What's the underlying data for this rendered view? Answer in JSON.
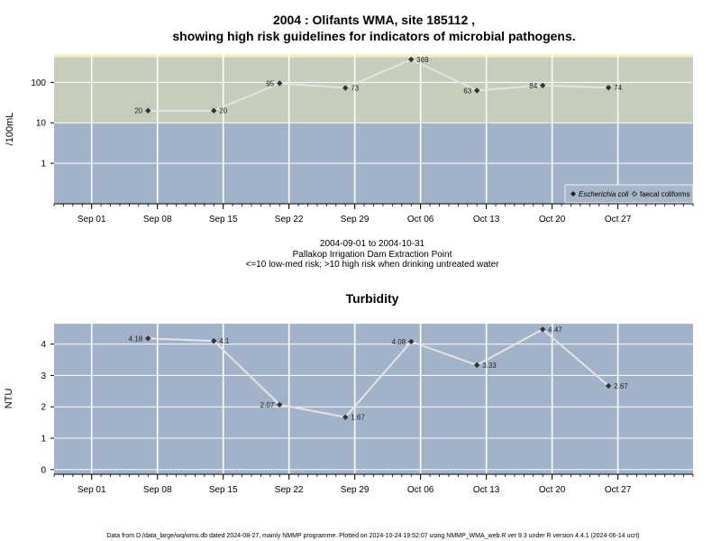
{
  "footer": "Data from D:/data_large/wq/wms.db dated 2024-08-27, mainly NMMP programme. Plotted on 2024-10-24 19:52:07 using NMMP_WMA_web.R ver 9.3 under R version 4.4.1 (2024-06-14 ucrt)",
  "info": {
    "range": "2004-09-01 to 2004-10-31",
    "site_name": "Pallakop Irrigation Dam Extraction Point",
    "guideline": "<=10 low-med risk; >10 high risk when drinking untreated water"
  },
  "colors": {
    "low_band": "#a2b2c9",
    "high_band": "#c5ceba",
    "top_strip": "#f4f0c4",
    "line": "#e4e4e4",
    "marker": "#333333",
    "grid": "#ffffff"
  },
  "chart_data": [
    {
      "type": "line",
      "title": "2004 : Olifants WMA, site 185112 ,",
      "subtitle": "showing high risk guidelines for indicators of microbial pathogens.",
      "xlabel": "",
      "ylabel": "/100mL",
      "y_scale": "log",
      "xlim": [
        "2004-08-28",
        "2004-11-04"
      ],
      "ylim": [
        0.1,
        500
      ],
      "yticks": [
        1,
        10,
        100
      ],
      "ytick_labels": [
        "1",
        "10",
        "100"
      ],
      "xticks": [
        "2004-09-01",
        "2004-09-08",
        "2004-09-15",
        "2004-09-22",
        "2004-09-29",
        "2004-10-06",
        "2004-10-13",
        "2004-10-20",
        "2004-10-27"
      ],
      "xtick_labels": [
        "Sep 01",
        "Sep 08",
        "Sep 15",
        "Sep 22",
        "Sep 29",
        "Oct 06",
        "Oct 13",
        "Oct 20",
        "Oct 27"
      ],
      "bands": [
        {
          "from": 0.1,
          "to": 10,
          "color": "#a2b2c9"
        },
        {
          "from": 10,
          "to": 420,
          "color": "#c5ceba"
        },
        {
          "from": 420,
          "to": 500,
          "color": "#f4f0c4"
        }
      ],
      "grid": true,
      "legend": {
        "position": "bottom-right",
        "entries": [
          {
            "label": "Escherichia coli",
            "marker": "diamond-filled",
            "italic": true
          },
          {
            "label": "faecal coliforms",
            "marker": "diamond-open",
            "italic": false
          }
        ]
      },
      "series": [
        {
          "name": "Escherichia coli",
          "x": [
            "2004-09-07",
            "2004-09-14",
            "2004-09-21",
            "2004-09-28",
            "2004-10-05",
            "2004-10-12",
            "2004-10-19",
            "2004-10-26"
          ],
          "y": [
            20,
            20,
            95,
            73,
            369,
            63,
            84,
            74
          ],
          "labels": [
            "20",
            "20",
            "95",
            "73",
            "369",
            "63",
            "84",
            "74"
          ],
          "label_side": [
            "left",
            "right",
            "left",
            "right",
            "right",
            "left",
            "left",
            "right"
          ]
        }
      ]
    },
    {
      "type": "line",
      "title": "Turbidity",
      "xlabel": "",
      "ylabel": "NTU",
      "y_scale": "linear",
      "xlim": [
        "2004-08-28",
        "2004-11-04"
      ],
      "ylim": [
        -0.15,
        4.65
      ],
      "yticks": [
        0,
        1,
        2,
        3,
        4
      ],
      "ytick_labels": [
        "0",
        "1",
        "2",
        "3",
        "4"
      ],
      "xticks": [
        "2004-09-01",
        "2004-09-08",
        "2004-09-15",
        "2004-09-22",
        "2004-09-29",
        "2004-10-06",
        "2004-10-13",
        "2004-10-20",
        "2004-10-27"
      ],
      "xtick_labels": [
        "Sep 01",
        "Sep 08",
        "Sep 15",
        "Sep 22",
        "Sep 29",
        "Oct 06",
        "Oct 13",
        "Oct 20",
        "Oct 27"
      ],
      "background": "#a2b2c9",
      "grid": true,
      "series": [
        {
          "name": "",
          "x": [
            "2004-09-07",
            "2004-09-14",
            "2004-09-21",
            "2004-09-28",
            "2004-10-05",
            "2004-10-12",
            "2004-10-19",
            "2004-10-26"
          ],
          "y": [
            4.18,
            4.1,
            2.07,
            1.67,
            4.08,
            3.33,
            4.47,
            2.67
          ],
          "labels": [
            "4.18",
            "4.1",
            "2.07",
            "1.67",
            "4.08",
            "3.33",
            "4.47",
            "2.67"
          ],
          "label_side": [
            "left",
            "right",
            "left",
            "right",
            "left",
            "right",
            "right",
            "right"
          ]
        }
      ]
    }
  ]
}
